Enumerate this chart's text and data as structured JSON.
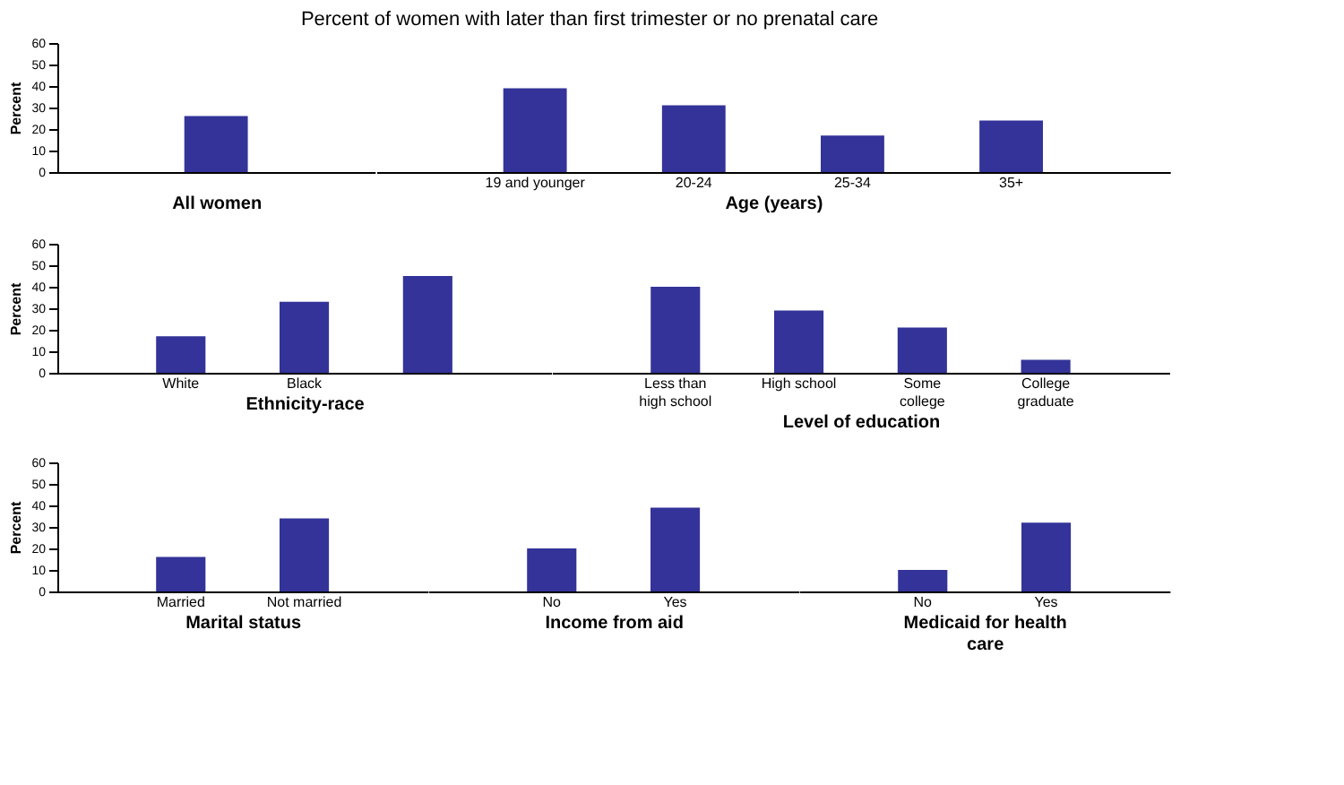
{
  "chart_data": [
    {
      "type": "bar",
      "title": "Percent of women with later than first trimester or no prenatal care",
      "categories": [
        null
      ],
      "values": [
        26
      ],
      "color": "#333399",
      "xlabel": "All women",
      "ylabel": "Percent",
      "ylim": [
        0,
        60
      ],
      "yticks": [
        0,
        10,
        20,
        30,
        40,
        50,
        60
      ]
    },
    {
      "type": "bar",
      "categories": [
        "19 and younger",
        "20-24",
        "25-34",
        "35+"
      ],
      "values": [
        39,
        31,
        17,
        24
      ],
      "color": "#333399",
      "xlabel": "Age (years)",
      "ylim": [
        0,
        60
      ],
      "yticks": [
        0,
        10,
        20,
        30,
        40,
        50,
        60
      ],
      "tick_labels": "x"
    },
    {
      "type": "bar",
      "categories": [
        "White",
        "Black",
        null
      ],
      "values": [
        17,
        33,
        45
      ],
      "color": "#333399",
      "xlabel": "Ethnicity-race",
      "ylabel": "Percent",
      "ylim": [
        0,
        60
      ],
      "yticks": [
        0,
        10,
        20,
        30,
        40,
        50,
        60
      ]
    },
    {
      "type": "bar",
      "categories": [
        "Less than\nhigh school",
        "High school",
        "Some\ncollege",
        "College\ngraduate"
      ],
      "values": [
        40,
        29,
        21,
        6
      ],
      "color": "#333399",
      "xlabel": "Level of education",
      "ylim": [
        0,
        60
      ],
      "yticks": [
        0,
        10,
        20,
        30,
        40,
        50,
        60
      ],
      "tick_labels": "x"
    },
    {
      "type": "bar",
      "categories": [
        "Married",
        "Not married"
      ],
      "values": [
        16,
        34
      ],
      "color": "#333399",
      "xlabel": "Marital status",
      "ylabel": "Percent",
      "ylim": [
        0,
        60
      ],
      "yticks": [
        0,
        10,
        20,
        30,
        40,
        50,
        60
      ]
    },
    {
      "type": "bar",
      "categories": [
        "No",
        "Yes"
      ],
      "values": [
        20,
        39
      ],
      "color": "#333399",
      "xlabel": "Income from aid",
      "ylim": [
        0,
        60
      ],
      "yticks": [
        0,
        10,
        20,
        30,
        40,
        50,
        60
      ],
      "tick_labels": "x"
    },
    {
      "type": "bar",
      "categories": [
        "No",
        "Yes"
      ],
      "values": [
        10,
        32
      ],
      "color": "#333399",
      "xlabel": "Medicaid for health\ncare",
      "ylim": [
        0,
        60
      ],
      "yticks": [
        0,
        10,
        20,
        30,
        40,
        50,
        60
      ],
      "tick_labels": "x"
    }
  ]
}
